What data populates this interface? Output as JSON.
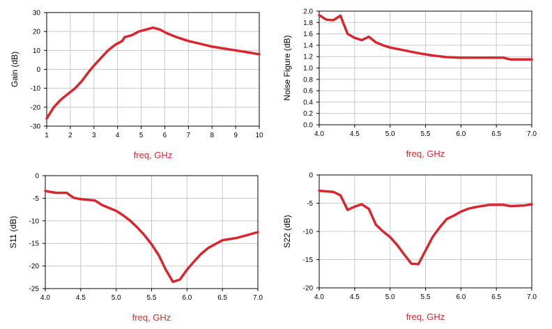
{
  "colors": {
    "trace": "#d9262e",
    "label": "#d9262e",
    "grid": "#c8c8c8",
    "frame": "#000000",
    "tick": "#000000"
  },
  "chart_data": [
    {
      "type": "line",
      "title": "",
      "xlabel": "freq, GHz",
      "ylabel": "Gain (dB)",
      "xlim": [
        1,
        10
      ],
      "ylim": [
        -30,
        30
      ],
      "xticks": [
        1,
        2,
        3,
        4,
        5,
        6,
        7,
        8,
        9,
        10
      ],
      "yticks": [
        -30,
        -20,
        -10,
        0,
        10,
        20,
        30
      ],
      "xtick_labels": [
        "1",
        "2",
        "3",
        "4",
        "5",
        "6",
        "7",
        "8",
        "9",
        "10"
      ],
      "ytick_labels": [
        "-30",
        "-20",
        "-10",
        "0",
        "10",
        "20",
        "30"
      ],
      "grid": true,
      "series": [
        {
          "x": [
            1,
            1.3,
            1.6,
            1.9,
            2.2,
            2.5,
            2.8,
            3.0,
            3.3,
            3.6,
            3.9,
            4.2,
            4.3,
            4.6,
            4.9,
            5.2,
            5.5,
            5.8,
            6.1,
            6.5,
            7.0,
            7.5,
            8.0,
            8.5,
            9.0,
            9.5,
            10.0
          ],
          "y": [
            -26,
            -20,
            -16,
            -13,
            -10,
            -6,
            -1,
            2,
            6,
            10,
            13,
            15,
            17,
            18,
            20,
            21,
            22,
            21,
            19,
            17,
            15,
            13.5,
            12,
            11,
            10,
            9,
            8
          ]
        }
      ]
    },
    {
      "type": "line",
      "title": "",
      "xlabel": "freq, GHz",
      "ylabel": "Noise Figure (dB)",
      "xlim": [
        4.0,
        7.0
      ],
      "ylim": [
        0.0,
        2.0
      ],
      "xticks": [
        4.0,
        4.5,
        5.0,
        5.5,
        6.0,
        6.5,
        7.0
      ],
      "yticks": [
        0.0,
        0.2,
        0.4,
        0.6,
        0.8,
        1.0,
        1.2,
        1.4,
        1.6,
        1.8,
        2.0
      ],
      "xtick_labels": [
        "4.0",
        "4.5",
        "5.0",
        "5.5",
        "6.0",
        "6.5",
        "7.0"
      ],
      "ytick_labels": [
        "0.0",
        "0.2",
        "0.4",
        "0.6",
        "0.8",
        "1.0",
        "1.2",
        "1.4",
        "1.6",
        "1.8",
        "2.0"
      ],
      "grid": true,
      "series": [
        {
          "x": [
            4.0,
            4.1,
            4.2,
            4.3,
            4.4,
            4.5,
            4.6,
            4.7,
            4.8,
            4.9,
            5.0,
            5.2,
            5.4,
            5.6,
            5.8,
            6.0,
            6.3,
            6.6,
            6.7,
            7.0
          ],
          "y": [
            1.93,
            1.85,
            1.84,
            1.92,
            1.6,
            1.53,
            1.49,
            1.55,
            1.45,
            1.4,
            1.36,
            1.31,
            1.26,
            1.22,
            1.19,
            1.18,
            1.18,
            1.18,
            1.15,
            1.15
          ]
        }
      ]
    },
    {
      "type": "line",
      "title": "",
      "xlabel": "freq, GHz",
      "ylabel": "S11 (dB)",
      "xlim": [
        4.0,
        7.0
      ],
      "ylim": [
        -25,
        0
      ],
      "xticks": [
        4.0,
        4.5,
        5.0,
        5.5,
        6.0,
        6.5,
        7.0
      ],
      "yticks": [
        -25,
        -20,
        -15,
        -10,
        -5,
        0
      ],
      "xtick_labels": [
        "4.0",
        "4.5",
        "5.0",
        "5.5",
        "6.0",
        "6.5",
        "7.0"
      ],
      "ytick_labels": [
        "-25",
        "-20",
        "-15",
        "-10",
        "-5",
        "0"
      ],
      "grid": true,
      "series": [
        {
          "x": [
            4.0,
            4.15,
            4.3,
            4.4,
            4.5,
            4.7,
            4.8,
            5.0,
            5.1,
            5.2,
            5.3,
            5.4,
            5.5,
            5.6,
            5.7,
            5.8,
            5.9,
            6.0,
            6.1,
            6.2,
            6.3,
            6.5,
            6.7,
            7.0
          ],
          "y": [
            -3.4,
            -3.8,
            -3.8,
            -4.9,
            -5.2,
            -5.5,
            -6.5,
            -7.8,
            -8.8,
            -10.0,
            -11.5,
            -13.2,
            -15.2,
            -17.6,
            -20.8,
            -23.5,
            -23.0,
            -20.8,
            -19.0,
            -17.3,
            -16.0,
            -14.3,
            -13.8,
            -12.5
          ]
        }
      ]
    },
    {
      "type": "line",
      "title": "",
      "xlabel": "freq, GHz",
      "ylabel": "S22 (dB)",
      "xlim": [
        4.0,
        7.0
      ],
      "ylim": [
        -20,
        0
      ],
      "xticks": [
        4.0,
        4.5,
        5.0,
        5.5,
        6.0,
        6.5,
        7.0
      ],
      "yticks": [
        -20,
        -15,
        -10,
        -5,
        0
      ],
      "xtick_labels": [
        "4.0",
        "4.5",
        "5.0",
        "5.5",
        "6.0",
        "6.5",
        "7.0"
      ],
      "ytick_labels": [
        "-20",
        "-15",
        "-10",
        "-5",
        "0"
      ],
      "grid": true,
      "series": [
        {
          "x": [
            4.0,
            4.2,
            4.3,
            4.4,
            4.5,
            4.6,
            4.7,
            4.8,
            4.9,
            5.0,
            5.1,
            5.2,
            5.3,
            5.4,
            5.5,
            5.6,
            5.7,
            5.8,
            5.9,
            6.0,
            6.1,
            6.2,
            6.4,
            6.6,
            6.7,
            6.9,
            7.0
          ],
          "y": [
            -2.8,
            -3.0,
            -3.6,
            -6.2,
            -5.6,
            -5.2,
            -6.0,
            -8.8,
            -10.0,
            -11.0,
            -12.4,
            -14.1,
            -15.7,
            -15.8,
            -13.4,
            -11.0,
            -9.3,
            -7.8,
            -7.2,
            -6.5,
            -6.0,
            -5.7,
            -5.3,
            -5.3,
            -5.5,
            -5.4,
            -5.2
          ]
        }
      ]
    }
  ]
}
